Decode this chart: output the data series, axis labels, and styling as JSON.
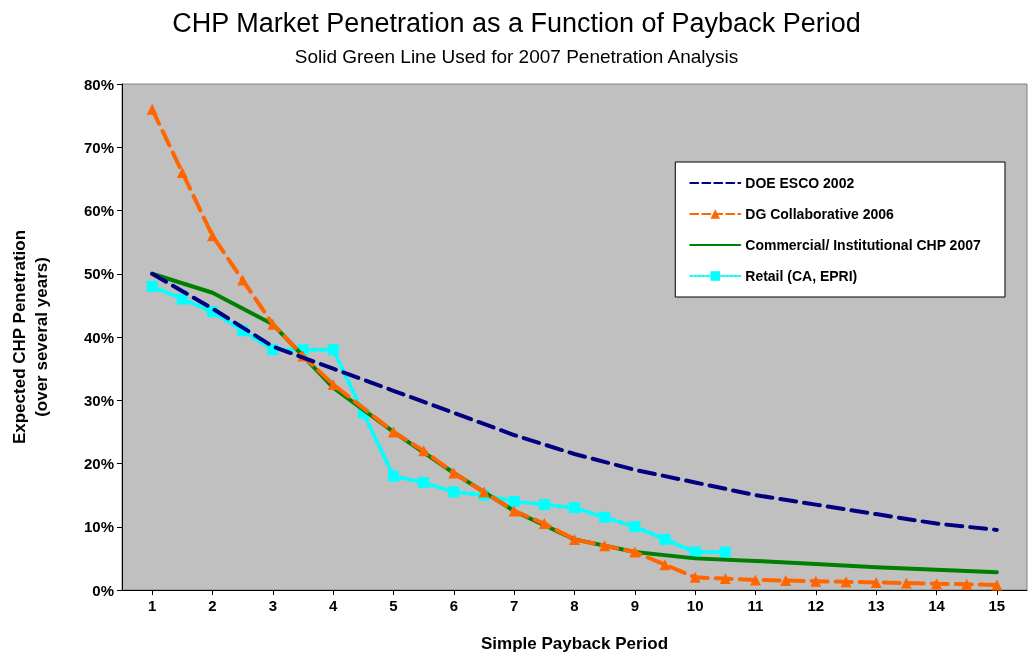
{
  "chart_data": {
    "type": "line",
    "title": "CHP Market Penetration as a Function of Payback Period",
    "subtitle": "Solid Green Line Used for 2007 Penetration Analysis",
    "xlabel": "Simple Payback Period",
    "ylabel": "Expected CHP Penetration\n(over several years)",
    "xlim": [
      0.5,
      15.5
    ],
    "xticks": [
      1,
      2,
      3,
      4,
      5,
      6,
      7,
      8,
      9,
      10,
      11,
      12,
      13,
      14,
      15
    ],
    "ylim": [
      0,
      80
    ],
    "yticks": [
      {
        "value": 0,
        "label": "0%"
      },
      {
        "value": 10,
        "label": "10%"
      },
      {
        "value": 20,
        "label": "20%"
      },
      {
        "value": 30,
        "label": "30%"
      },
      {
        "value": 40,
        "label": "40%"
      },
      {
        "value": 50,
        "label": "50%"
      },
      {
        "value": 60,
        "label": "60%"
      },
      {
        "value": 70,
        "label": "70%"
      },
      {
        "value": 80,
        "label": "80%"
      }
    ],
    "grid": false,
    "legend": "top right",
    "series": [
      {
        "name": "DOE ESCO 2002",
        "color": "#000080",
        "line_style": "dashed",
        "marker": "none",
        "x": [
          1,
          2,
          3,
          4,
          5,
          6,
          7,
          8,
          9,
          10,
          11,
          12,
          13,
          14,
          15
        ],
        "values": [
          50,
          44.5,
          38.5,
          35,
          31.5,
          28,
          24.5,
          21.5,
          19,
          17,
          15,
          13.5,
          12,
          10.5,
          9.5
        ]
      },
      {
        "name": "DG Collaborative 2006",
        "color": "#ff6600",
        "line_style": "dashed",
        "marker": "triangle",
        "x": [
          1,
          1.5,
          2,
          2.5,
          3,
          3.5,
          4,
          5,
          5.5,
          6,
          6.5,
          7,
          7.5,
          8,
          8.5,
          9,
          9.5,
          10,
          10.5,
          11,
          11.5,
          12,
          12.5,
          13,
          13.5,
          14,
          14.5,
          15
        ],
        "values": [
          76,
          66,
          56,
          49,
          42,
          37,
          32.5,
          25,
          22,
          18.5,
          15.5,
          12.5,
          10.5,
          8,
          7,
          6,
          4,
          2,
          1.8,
          1.6,
          1.5,
          1.4,
          1.3,
          1.2,
          1.1,
          1,
          0.9,
          0.8
        ]
      },
      {
        "name": "Commercial/ Institutional CHP 2007",
        "color": "#008000",
        "line_style": "solid",
        "marker": "none",
        "x": [
          1,
          2,
          3,
          3.5,
          4,
          5,
          6,
          7,
          8,
          9,
          10,
          11,
          12,
          13,
          14,
          15
        ],
        "values": [
          50,
          47,
          42,
          37,
          32,
          25,
          18.5,
          12.5,
          8,
          6,
          5,
          4.6,
          4.1,
          3.6,
          3.2,
          2.8
        ]
      },
      {
        "name": "Retail (CA, EPRI)",
        "color": "#00ffff",
        "line_style": "dotted",
        "marker": "square",
        "x": [
          1,
          1.5,
          2,
          2.5,
          3,
          3.5,
          4,
          4.5,
          5,
          5.5,
          6,
          6.5,
          7,
          7.5,
          8,
          8.5,
          9,
          9.5,
          10,
          10.5
        ],
        "values": [
          48,
          46,
          44,
          41,
          38,
          38,
          38,
          28,
          18,
          17,
          15.5,
          15,
          14,
          13.5,
          13,
          11.5,
          10,
          8,
          6,
          6
        ]
      }
    ]
  }
}
